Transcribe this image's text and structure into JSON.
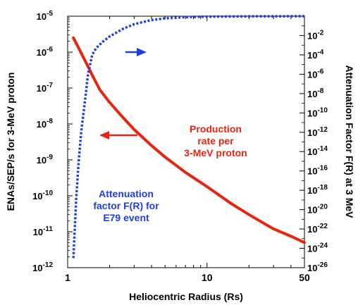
{
  "chart_data": {
    "type": "line",
    "xlabel": "Heliocentric Radius (Rs)",
    "ylabel_left": "ENAs/SEP/s  for 3-MeV proton",
    "ylabel_right": "Attenuation Factor F(R) at 3 MeV",
    "x_scale": "log",
    "xlim": [
      1,
      50
    ],
    "x_ticks": [
      {
        "value": 1,
        "label": "1"
      },
      {
        "value": 10,
        "label": "10"
      },
      {
        "value": 50,
        "label": "50"
      }
    ],
    "y_left_scale": "log",
    "y_left_lim": [
      1e-12,
      1e-05
    ],
    "y_left_ticks": [
      {
        "value": 1e-12,
        "base": "10",
        "exp": "-12"
      },
      {
        "value": 1e-11,
        "base": "10",
        "exp": "-11"
      },
      {
        "value": 1e-10,
        "base": "10",
        "exp": "-10"
      },
      {
        "value": 1e-09,
        "base": "10",
        "exp": "-9"
      },
      {
        "value": 1e-08,
        "base": "10",
        "exp": "-8"
      },
      {
        "value": 1e-07,
        "base": "10",
        "exp": "-7"
      },
      {
        "value": 1e-06,
        "base": "10",
        "exp": "-6"
      },
      {
        "value": 1e-05,
        "base": "10",
        "exp": "-5"
      }
    ],
    "y_right_scale": "log",
    "y_right_lim": [
      1e-26,
      1
    ],
    "y_right_ticks": [
      {
        "value": 1e-26,
        "base": "10",
        "exp": "-26"
      },
      {
        "value": 1e-24,
        "base": "10",
        "exp": "-24"
      },
      {
        "value": 1e-22,
        "base": "10",
        "exp": "-22"
      },
      {
        "value": 1e-20,
        "base": "10",
        "exp": "-20"
      },
      {
        "value": 1e-18,
        "base": "10",
        "exp": "-18"
      },
      {
        "value": 1e-16,
        "base": "10",
        "exp": "-16"
      },
      {
        "value": 1e-14,
        "base": "10",
        "exp": "-14"
      },
      {
        "value": 1e-12,
        "base": "10",
        "exp": "-12"
      },
      {
        "value": 1e-10,
        "base": "10",
        "exp": "-10"
      },
      {
        "value": 1e-08,
        "base": "10",
        "exp": "-8"
      },
      {
        "value": 1e-06,
        "base": "10",
        "exp": "-6"
      },
      {
        "value": 0.0001,
        "base": "10",
        "exp": "-4"
      },
      {
        "value": 0.01,
        "base": "10",
        "exp": "-2"
      }
    ],
    "series": [
      {
        "axis": "left",
        "color": "#e8240f",
        "style": "solid",
        "x": [
          1.1,
          1.2,
          1.3,
          1.4,
          1.5,
          1.7,
          2,
          2.5,
          3,
          4,
          5,
          7,
          10,
          15,
          20,
          30,
          40,
          50
        ],
        "y": [
          2.5e-06,
          1.3e-06,
          7e-07,
          4e-07,
          2.3e-07,
          9e-08,
          4e-08,
          1.5e-08,
          7e-09,
          2.5e-09,
          1.2e-09,
          4.5e-10,
          1.8e-10,
          6e-11,
          3e-11,
          1.2e-11,
          7.5e-12,
          5e-12
        ]
      },
      {
        "axis": "right",
        "color": "#1f3de0",
        "style": "dotted",
        "x": [
          1.1,
          1.15,
          1.2,
          1.25,
          1.3,
          1.35,
          1.4,
          1.5,
          1.6,
          1.8,
          2,
          2.5,
          3,
          4,
          5,
          7,
          10,
          20,
          50
        ],
        "y": [
          1e-25,
          1e-19,
          1e-15,
          1e-12,
          1e-10,
          1e-08,
          1e-06,
          0.0001,
          0.0005,
          0.0025,
          0.008,
          0.05,
          0.15,
          0.4,
          0.6,
          0.8,
          0.9,
          0.97,
          1.0
        ]
      }
    ],
    "annotations": [
      {
        "name": "production",
        "color": "#e8240f",
        "lines": [
          "Production",
          "rate per",
          "3-MeV proton"
        ]
      },
      {
        "name": "attenuation",
        "color": "#1f3de0",
        "lines": [
          "Attenuation",
          "factor F(R) for",
          "E79 event"
        ]
      }
    ],
    "arrows": [
      {
        "color": "#1f3de0",
        "direction": "right"
      },
      {
        "color": "#e8240f",
        "direction": "left"
      }
    ]
  }
}
